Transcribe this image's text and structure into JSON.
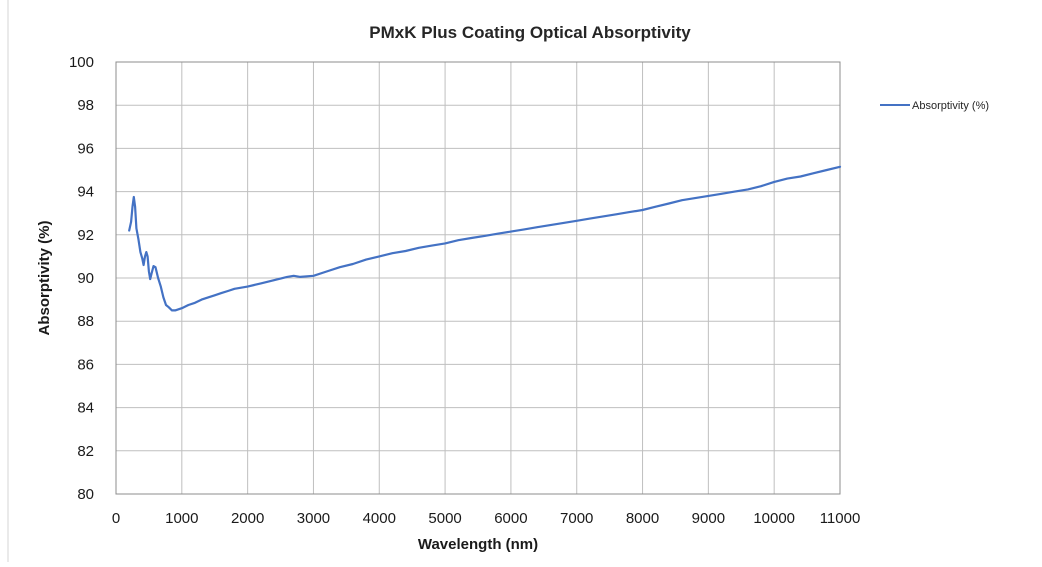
{
  "chart_data": {
    "type": "line",
    "title": "PMxK Plus Coating Optical Absorptivity",
    "xlabel": "Wavelength (nm)",
    "ylabel": "Absorptivity (%)",
    "xlim": [
      0,
      11000
    ],
    "ylim": [
      80,
      100
    ],
    "x_ticks": [
      0,
      1000,
      2000,
      3000,
      4000,
      5000,
      6000,
      7000,
      8000,
      9000,
      10000,
      11000
    ],
    "y_ticks": [
      80,
      82,
      84,
      86,
      88,
      90,
      92,
      94,
      96,
      98,
      100
    ],
    "grid": true,
    "legend_position": "top-right",
    "series": [
      {
        "name": "Absorptivity (%)",
        "color": "#4472c4",
        "points": [
          [
            200,
            92.2
          ],
          [
            230,
            92.6
          ],
          [
            250,
            93.3
          ],
          [
            270,
            93.75
          ],
          [
            290,
            93.3
          ],
          [
            310,
            92.3
          ],
          [
            340,
            91.8
          ],
          [
            370,
            91.2
          ],
          [
            400,
            90.9
          ],
          [
            420,
            90.6
          ],
          [
            440,
            91.0
          ],
          [
            460,
            91.2
          ],
          [
            480,
            91.0
          ],
          [
            500,
            90.3
          ],
          [
            520,
            89.95
          ],
          [
            540,
            90.2
          ],
          [
            570,
            90.55
          ],
          [
            600,
            90.5
          ],
          [
            640,
            90.0
          ],
          [
            680,
            89.6
          ],
          [
            720,
            89.1
          ],
          [
            760,
            88.75
          ],
          [
            800,
            88.65
          ],
          [
            850,
            88.5
          ],
          [
            900,
            88.5
          ],
          [
            1000,
            88.6
          ],
          [
            1100,
            88.75
          ],
          [
            1200,
            88.85
          ],
          [
            1300,
            89.0
          ],
          [
            1400,
            89.1
          ],
          [
            1500,
            89.2
          ],
          [
            1600,
            89.3
          ],
          [
            1700,
            89.4
          ],
          [
            1800,
            89.5
          ],
          [
            1900,
            89.55
          ],
          [
            2000,
            89.6
          ],
          [
            2200,
            89.75
          ],
          [
            2400,
            89.9
          ],
          [
            2600,
            90.05
          ],
          [
            2700,
            90.1
          ],
          [
            2800,
            90.05
          ],
          [
            3000,
            90.1
          ],
          [
            3200,
            90.3
          ],
          [
            3400,
            90.5
          ],
          [
            3600,
            90.65
          ],
          [
            3800,
            90.85
          ],
          [
            4000,
            91.0
          ],
          [
            4200,
            91.15
          ],
          [
            4400,
            91.25
          ],
          [
            4600,
            91.4
          ],
          [
            4800,
            91.5
          ],
          [
            5000,
            91.6
          ],
          [
            5200,
            91.75
          ],
          [
            5400,
            91.85
          ],
          [
            5600,
            91.95
          ],
          [
            5800,
            92.05
          ],
          [
            6000,
            92.15
          ],
          [
            6200,
            92.25
          ],
          [
            6400,
            92.35
          ],
          [
            6600,
            92.45
          ],
          [
            6800,
            92.55
          ],
          [
            7000,
            92.65
          ],
          [
            7200,
            92.75
          ],
          [
            7400,
            92.85
          ],
          [
            7600,
            92.95
          ],
          [
            7800,
            93.05
          ],
          [
            8000,
            93.15
          ],
          [
            8200,
            93.3
          ],
          [
            8400,
            93.45
          ],
          [
            8600,
            93.6
          ],
          [
            8800,
            93.7
          ],
          [
            9000,
            93.8
          ],
          [
            9200,
            93.9
          ],
          [
            9400,
            94.0
          ],
          [
            9600,
            94.1
          ],
          [
            9800,
            94.25
          ],
          [
            10000,
            94.45
          ],
          [
            10200,
            94.6
          ],
          [
            10400,
            94.7
          ],
          [
            10600,
            94.85
          ],
          [
            10800,
            95.0
          ],
          [
            11000,
            95.15
          ]
        ]
      }
    ]
  }
}
